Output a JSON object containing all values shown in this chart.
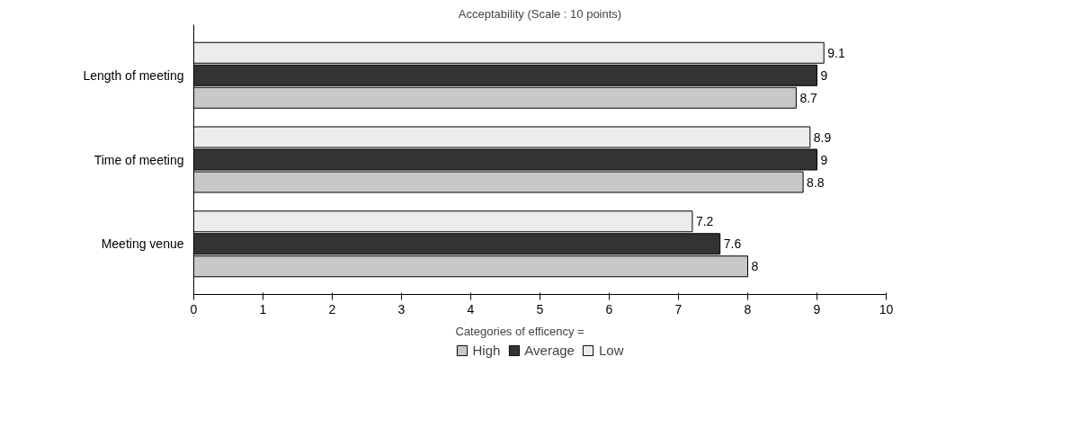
{
  "chart_data": {
    "type": "bar",
    "orientation": "horizontal",
    "title": "Acceptability (Scale : 10 points)",
    "categories": [
      "Length of meeting",
      "Time of meeting",
      "Meeting venue"
    ],
    "series": [
      {
        "name": "High",
        "color": "#c8c8c8",
        "values": [
          8.7,
          8.8,
          8
        ]
      },
      {
        "name": "Average",
        "color": "#333333",
        "values": [
          9,
          9,
          7.6
        ]
      },
      {
        "name": "Low",
        "color": "#ececec",
        "values": [
          9.1,
          8.9,
          7.2
        ]
      }
    ],
    "legend_title": "Categories of efficency =",
    "legend": "bottom",
    "data_labels": true,
    "xlim": [
      0,
      10
    ],
    "xticks": [
      0,
      1,
      2,
      3,
      4,
      5,
      6,
      7,
      8,
      9,
      10
    ],
    "grid": false
  }
}
